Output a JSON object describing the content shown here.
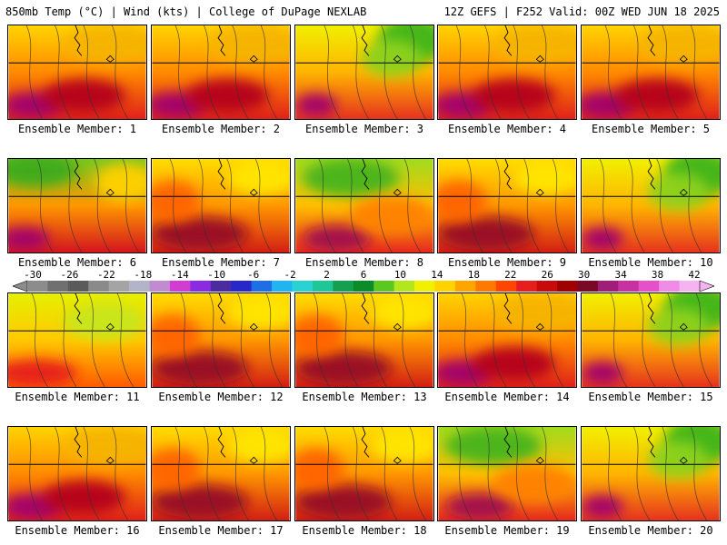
{
  "header": {
    "title_left": "850mb Temp (°C) | Wind (kts) | College of DuPage NEXLAB",
    "title_right": "12Z GEFS | F252 Valid: 00Z WED JUN 18 2025"
  },
  "label_prefix": "Ensemble Member: ",
  "members": [
    {
      "number": "1",
      "theme": "hot"
    },
    {
      "number": "2",
      "theme": "hot"
    },
    {
      "number": "3",
      "theme": "cool-ne"
    },
    {
      "number": "4",
      "theme": "hot"
    },
    {
      "number": "5",
      "theme": "hot"
    },
    {
      "number": "6",
      "theme": "cool-nw"
    },
    {
      "number": "7",
      "theme": "warm"
    },
    {
      "number": "8",
      "theme": "cool-n"
    },
    {
      "number": "9",
      "theme": "warm"
    },
    {
      "number": "10",
      "theme": "cool-ne"
    },
    {
      "number": "11",
      "theme": "mild"
    },
    {
      "number": "12",
      "theme": "warm"
    },
    {
      "number": "13",
      "theme": "warm"
    },
    {
      "number": "14",
      "theme": "hot"
    },
    {
      "number": "15",
      "theme": "cool-ne"
    },
    {
      "number": "16",
      "theme": "hot"
    },
    {
      "number": "17",
      "theme": "warm"
    },
    {
      "number": "18",
      "theme": "warm"
    },
    {
      "number": "19",
      "theme": "cool-n"
    },
    {
      "number": "20",
      "theme": "cool-ne"
    }
  ],
  "colorbar": {
    "labels": [
      "-30",
      "-26",
      "-22",
      "-18",
      "-14",
      "-10",
      "-6",
      "-2",
      "2",
      "6",
      "10",
      "14",
      "18",
      "22",
      "26",
      "30",
      "34",
      "38",
      "42"
    ],
    "colors": [
      "#8c8c8c",
      "#707070",
      "#5a5a5a",
      "#8a8a8a",
      "#a4a4a4",
      "#b4b4c8",
      "#c08ccf",
      "#d23cd2",
      "#8a2be2",
      "#4b2ca0",
      "#2828c8",
      "#1e6ee6",
      "#22b4f0",
      "#2ad2d2",
      "#1ec896",
      "#14a050",
      "#0a8c28",
      "#5ac81e",
      "#b4e61e",
      "#f0f000",
      "#ffd200",
      "#ffa500",
      "#ff7800",
      "#ff4600",
      "#e61e1e",
      "#c80a0a",
      "#a00000",
      "#780a28",
      "#a01e78",
      "#c832a0",
      "#e650c8",
      "#f08ce6",
      "#f5b4f0"
    ]
  }
}
